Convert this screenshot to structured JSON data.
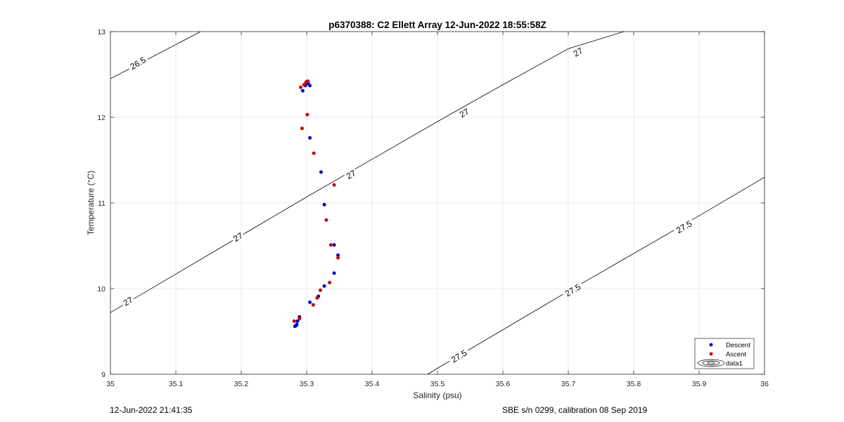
{
  "chart_data": {
    "type": "scatter",
    "title": "p6370388: C2 Ellett Array 12-Jun-2022 18:55:58Z",
    "xlabel": "Salinity (psu)",
    "ylabel": "Temperature (°C)",
    "xlim": [
      35,
      36
    ],
    "ylim": [
      9,
      13
    ],
    "xticks": [
      "35",
      "35.1",
      "35.2",
      "35.3",
      "35.4",
      "35.5",
      "35.6",
      "35.7",
      "35.8",
      "35.9",
      "36"
    ],
    "yticks": [
      "9",
      "10",
      "11",
      "12",
      "13"
    ],
    "grid": true,
    "legend_position": "bottom-right",
    "series": [
      {
        "name": "Descent",
        "color": "#0000cc",
        "marker": "dot",
        "points": [
          [
            35.294,
            12.31
          ],
          [
            35.298,
            12.37
          ],
          [
            35.3,
            12.39
          ],
          [
            35.302,
            12.4
          ],
          [
            35.305,
            12.37
          ],
          [
            35.305,
            11.76
          ],
          [
            35.322,
            11.36
          ],
          [
            35.327,
            10.98
          ],
          [
            35.342,
            10.51
          ],
          [
            35.348,
            10.39
          ],
          [
            35.342,
            10.18
          ],
          [
            35.327,
            10.03
          ],
          [
            35.318,
            9.91
          ],
          [
            35.305,
            9.84
          ],
          [
            35.289,
            9.67
          ],
          [
            35.286,
            9.62
          ],
          [
            35.284,
            9.57
          ],
          [
            35.282,
            9.56
          ],
          [
            35.285,
            9.58
          ]
        ]
      },
      {
        "name": "Ascent",
        "color": "#cc0000",
        "marker": "dot",
        "points": [
          [
            35.291,
            12.35
          ],
          [
            35.296,
            12.38
          ],
          [
            35.299,
            12.41
          ],
          [
            35.302,
            12.42
          ],
          [
            35.301,
            12.42
          ],
          [
            35.301,
            12.03
          ],
          [
            35.293,
            11.87
          ],
          [
            35.311,
            11.58
          ],
          [
            35.342,
            11.21
          ],
          [
            35.33,
            10.8
          ],
          [
            35.337,
            10.51
          ],
          [
            35.348,
            10.36
          ],
          [
            35.335,
            10.07
          ],
          [
            35.321,
            9.98
          ],
          [
            35.316,
            9.89
          ],
          [
            35.31,
            9.81
          ],
          [
            35.289,
            9.65
          ],
          [
            35.281,
            9.62
          ]
        ]
      }
    ],
    "contours": [
      {
        "name": "data1",
        "legend_label": "data1",
        "color": "#000000",
        "lines": [
          {
            "level": "26.5",
            "points": [
              [
                35.0,
                12.45
              ],
              [
                35.138,
                13.0
              ]
            ]
          },
          {
            "level": "27",
            "points": [
              [
                35.0,
                9.72
              ],
              [
                35.1,
                10.17
              ],
              [
                35.2,
                10.62
              ],
              [
                35.3,
                11.07
              ],
              [
                35.4,
                11.51
              ],
              [
                35.5,
                11.95
              ],
              [
                35.6,
                12.38
              ],
              [
                35.7,
                12.8
              ],
              [
                35.785,
                13.0
              ]
            ]
          },
          {
            "level": "27.5",
            "points": [
              [
                35.485,
                9.0
              ],
              [
                35.5,
                9.07
              ],
              [
                35.6,
                9.52
              ],
              [
                35.7,
                9.97
              ],
              [
                35.8,
                10.41
              ],
              [
                35.9,
                10.85
              ],
              [
                36.0,
                11.3
              ]
            ]
          }
        ],
        "labels": [
          {
            "text": "26.5",
            "x": 35.042,
            "y": 12.63
          },
          {
            "text": "27",
            "x": 35.027,
            "y": 9.85
          },
          {
            "text": "27",
            "x": 35.195,
            "y": 10.6
          },
          {
            "text": "27",
            "x": 35.368,
            "y": 11.33
          },
          {
            "text": "27",
            "x": 35.541,
            "y": 12.05
          },
          {
            "text": "27",
            "x": 35.715,
            "y": 12.76
          },
          {
            "text": "27.5",
            "x": 35.533,
            "y": 9.21
          },
          {
            "text": "27.5",
            "x": 35.707,
            "y": 9.98
          },
          {
            "text": "27.5",
            "x": 35.877,
            "y": 10.72
          }
        ]
      }
    ],
    "legend": {
      "entries": [
        {
          "label": "Descent"
        },
        {
          "label": "Ascent"
        },
        {
          "label": "data1"
        }
      ]
    }
  },
  "footer": {
    "timestamp": "12-Jun-2022 21:41:35",
    "calibration": "SBE s/n 0299, calibration 08 Sep 2019"
  }
}
